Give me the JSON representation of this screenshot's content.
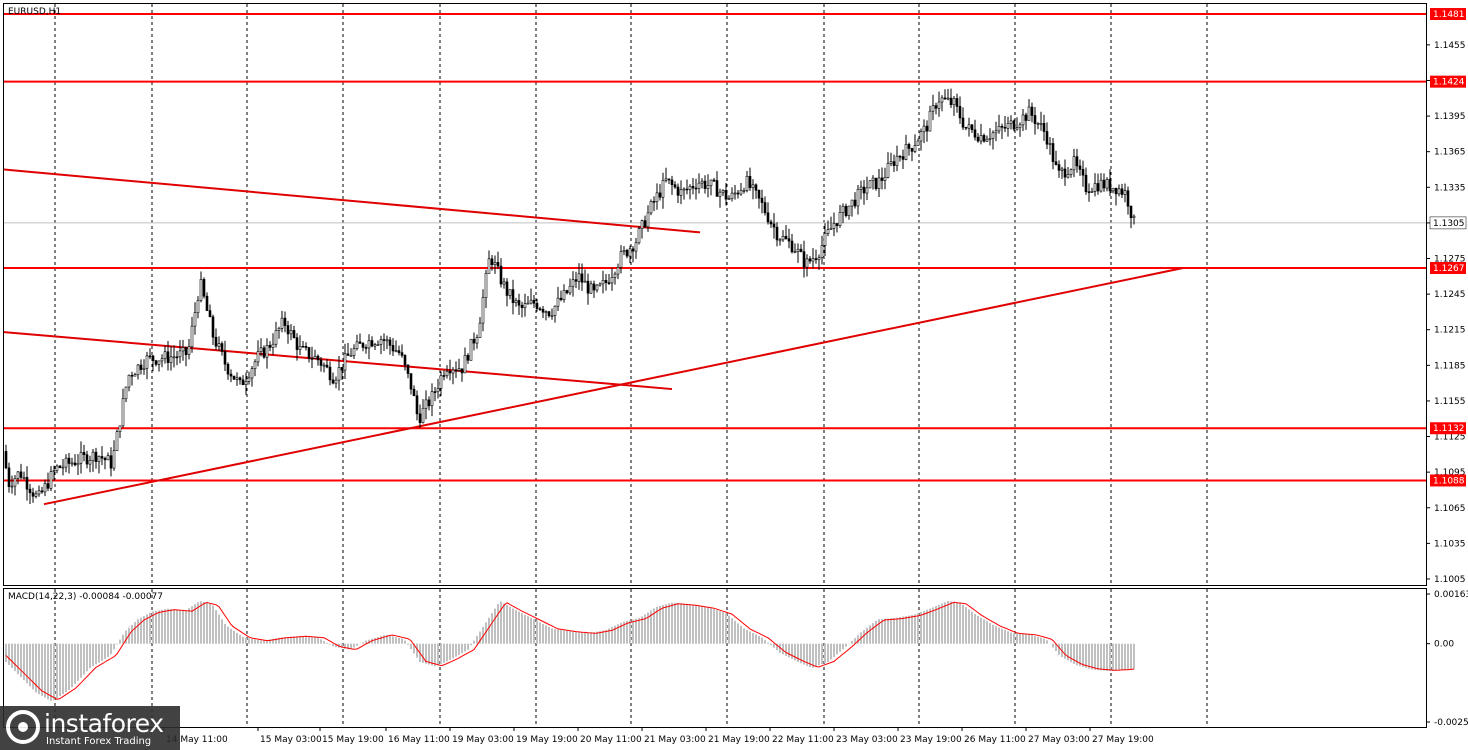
{
  "window": {
    "title": "EURUSD,H1"
  },
  "macd": {
    "label": "MACD(14,22,3) -0.00084 -0.00077",
    "y_ticks": [
      "0.00163",
      "0.00",
      "-0.00257"
    ]
  },
  "price_axis": {
    "ticks": [
      "1.1455",
      "1.1425",
      "1.1395",
      "1.1365",
      "1.1335",
      "1.1305",
      "1.1275",
      "1.1245",
      "1.1215",
      "1.1185",
      "1.1155",
      "1.1125",
      "1.1095",
      "1.1065",
      "1.1035",
      "1.1005"
    ],
    "current_price": "1.1305"
  },
  "time_axis": {
    "labels": [
      "14 May 11:00",
      "15 May 03:00",
      "15 May 19:00",
      "16 May 11:00",
      "19 May 03:00",
      "19 May 19:00",
      "20 May 11:00",
      "21 May 03:00",
      "21 May 19:00",
      "22 May 11:00",
      "23 May 03:00",
      "23 May 19:00",
      "26 May 11:00",
      "27 May 03:00",
      "27 May 19:00"
    ]
  },
  "levels": [
    {
      "value": 1.1481,
      "label": "1.1481"
    },
    {
      "value": 1.1424,
      "label": "1.1424"
    },
    {
      "value": 1.1267,
      "label": "1.1267"
    },
    {
      "value": 1.1132,
      "label": "1.1132"
    },
    {
      "value": 1.1088,
      "label": "1.1088"
    }
  ],
  "colors": {
    "level": "#ff0000",
    "trendline": "#e00000",
    "candle": "#000000",
    "grid": "#000000",
    "histogram": "#c0c0c0",
    "signal": "#ff0000",
    "current_price_line": "#c0c0c0",
    "brand_bg": "#2e2e2e"
  },
  "logo": {
    "brand": "instaforex",
    "tagline": "Instant Forex Trading"
  },
  "chart_data": {
    "type": "candlestick",
    "symbol": "EURUSD",
    "timeframe": "H1",
    "ylim": [
      1.1,
      1.149
    ],
    "grid": true,
    "close_path": [
      [
        0,
        1.114
      ],
      [
        8,
        1.1085
      ],
      [
        20,
        1.1095
      ],
      [
        38,
        1.1072
      ],
      [
        56,
        1.1098
      ],
      [
        77,
        1.1105
      ],
      [
        97,
        1.111
      ],
      [
        112,
        1.1102
      ],
      [
        128,
        1.1176
      ],
      [
        146,
        1.119
      ],
      [
        170,
        1.1192
      ],
      [
        188,
        1.1195
      ],
      [
        200,
        1.1255
      ],
      [
        213,
        1.121
      ],
      [
        226,
        1.1185
      ],
      [
        240,
        1.1168
      ],
      [
        258,
        1.1192
      ],
      [
        268,
        1.12
      ],
      [
        284,
        1.1222
      ],
      [
        300,
        1.1198
      ],
      [
        318,
        1.119
      ],
      [
        334,
        1.1175
      ],
      [
        350,
        1.1195
      ],
      [
        366,
        1.1205
      ],
      [
        382,
        1.1208
      ],
      [
        400,
        1.1195
      ],
      [
        412,
        1.1165
      ],
      [
        418,
        1.114
      ],
      [
        432,
        1.1158
      ],
      [
        446,
        1.1185
      ],
      [
        462,
        1.1183
      ],
      [
        478,
        1.1215
      ],
      [
        490,
        1.1278
      ],
      [
        506,
        1.1248
      ],
      [
        520,
        1.1232
      ],
      [
        535,
        1.1238
      ],
      [
        550,
        1.123
      ],
      [
        566,
        1.1245
      ],
      [
        578,
        1.126
      ],
      [
        594,
        1.1245
      ],
      [
        606,
        1.1255
      ],
      [
        620,
        1.1275
      ],
      [
        636,
        1.129
      ],
      [
        652,
        1.132
      ],
      [
        666,
        1.134
      ],
      [
        682,
        1.133
      ],
      [
        698,
        1.134
      ],
      [
        714,
        1.1335
      ],
      [
        730,
        1.1325
      ],
      [
        746,
        1.134
      ],
      [
        762,
        1.132
      ],
      [
        778,
        1.1295
      ],
      [
        794,
        1.1285
      ],
      [
        806,
        1.127
      ],
      [
        818,
        1.128
      ],
      [
        834,
        1.1305
      ],
      [
        850,
        1.132
      ],
      [
        866,
        1.1335
      ],
      [
        880,
        1.134
      ],
      [
        896,
        1.136
      ],
      [
        912,
        1.137
      ],
      [
        926,
        1.1385
      ],
      [
        938,
        1.141
      ],
      [
        954,
        1.1405
      ],
      [
        966,
        1.1385
      ],
      [
        982,
        1.1378
      ],
      [
        998,
        1.1382
      ],
      [
        1016,
        1.139
      ],
      [
        1030,
        1.1398
      ],
      [
        1046,
        1.138
      ],
      [
        1058,
        1.1345
      ],
      [
        1074,
        1.1355
      ],
      [
        1086,
        1.1335
      ],
      [
        1100,
        1.1338
      ],
      [
        1116,
        1.1335
      ],
      [
        1126,
        1.133
      ],
      [
        1134,
        1.1305
      ]
    ],
    "trendlines": [
      {
        "from": [
          "12 May",
          1.135
        ],
        "to": [
          "21 May 19:00",
          1.1297
        ]
      },
      {
        "from": [
          "12 May",
          1.1213
        ],
        "to": [
          "22 May",
          1.1165
        ]
      },
      {
        "from": [
          "13 May",
          1.1068
        ],
        "to": [
          "28 May",
          1.1267
        ]
      }
    ],
    "macd": {
      "params": "14,22,3",
      "main": -0.00084,
      "signal": -0.00077,
      "ylim": [
        -0.00257,
        0.00163
      ],
      "histogram_path": [
        [
          0,
          -0.0004
        ],
        [
          18,
          -0.001
        ],
        [
          36,
          -0.0016
        ],
        [
          52,
          -0.0019
        ],
        [
          70,
          -0.0015
        ],
        [
          90,
          -0.0008
        ],
        [
          110,
          -0.0004
        ],
        [
          125,
          0.0004
        ],
        [
          138,
          0.0008
        ],
        [
          152,
          0.00105
        ],
        [
          168,
          0.00115
        ],
        [
          186,
          0.0011
        ],
        [
          200,
          0.0014
        ],
        [
          212,
          0.0013
        ],
        [
          226,
          0.0006
        ],
        [
          244,
          0.0002
        ],
        [
          262,
          0.0001
        ],
        [
          280,
          0.0002
        ],
        [
          300,
          0.00025
        ],
        [
          318,
          0.0002
        ],
        [
          334,
          -0.0001
        ],
        [
          350,
          -0.0002
        ],
        [
          366,
          0.0001
        ],
        [
          386,
          0.0003
        ],
        [
          404,
          0.00015
        ],
        [
          420,
          -0.0006
        ],
        [
          436,
          -0.00075
        ],
        [
          452,
          -0.0005
        ],
        [
          468,
          -0.0002
        ],
        [
          484,
          0.0006
        ],
        [
          500,
          0.0014
        ],
        [
          516,
          0.0011
        ],
        [
          534,
          0.0008
        ],
        [
          552,
          0.0005
        ],
        [
          572,
          0.0004
        ],
        [
          590,
          0.00035
        ],
        [
          606,
          0.00045
        ],
        [
          622,
          0.0007
        ],
        [
          640,
          0.00085
        ],
        [
          656,
          0.0012
        ],
        [
          672,
          0.00135
        ],
        [
          690,
          0.0013
        ],
        [
          708,
          0.0012
        ],
        [
          726,
          0.001
        ],
        [
          744,
          0.0005
        ],
        [
          762,
          0.0002
        ],
        [
          780,
          -0.0003
        ],
        [
          798,
          -0.0006
        ],
        [
          812,
          -0.0008
        ],
        [
          828,
          -0.0006
        ],
        [
          846,
          -0.0001
        ],
        [
          862,
          0.0004
        ],
        [
          878,
          0.0008
        ],
        [
          896,
          0.00085
        ],
        [
          914,
          0.00095
        ],
        [
          930,
          0.00115
        ],
        [
          948,
          0.0014
        ],
        [
          960,
          0.00135
        ],
        [
          976,
          0.00095
        ],
        [
          994,
          0.0006
        ],
        [
          1012,
          0.00035
        ],
        [
          1030,
          0.0003
        ],
        [
          1046,
          0.00015
        ],
        [
          1060,
          -0.0004
        ],
        [
          1076,
          -0.0007
        ],
        [
          1092,
          -0.00085
        ],
        [
          1108,
          -0.0009
        ],
        [
          1122,
          -0.00088
        ],
        [
          1134,
          -0.00084
        ]
      ]
    }
  }
}
